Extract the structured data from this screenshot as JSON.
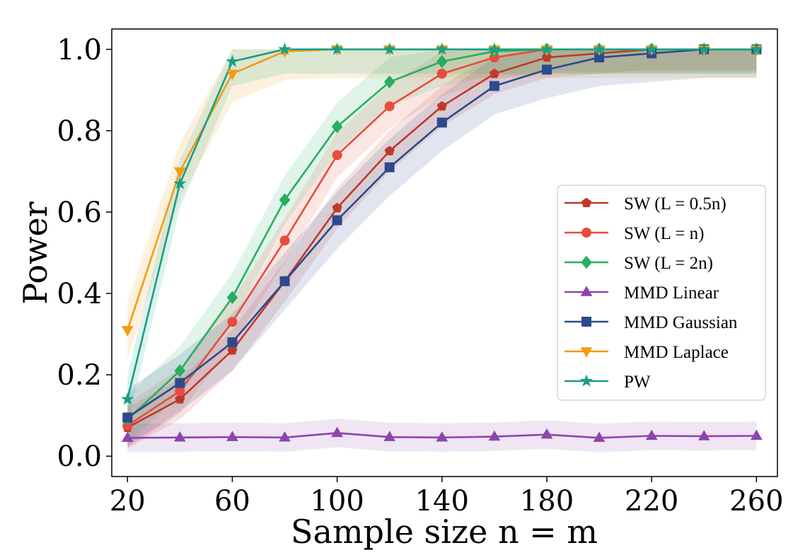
{
  "chart_data": {
    "type": "line",
    "xlabel": "Sample size n = m",
    "ylabel": "Power",
    "xlim": [
      14,
      268
    ],
    "ylim": [
      -0.05,
      1.05
    ],
    "x_ticks": [
      20,
      60,
      100,
      140,
      180,
      220,
      260
    ],
    "y_ticks": [
      0.0,
      0.2,
      0.4,
      0.6,
      0.8,
      1.0
    ],
    "x_tick_labels": [
      "20",
      "60",
      "100",
      "140",
      "180",
      "220",
      "260"
    ],
    "y_tick_labels": [
      "0.0",
      "0.2",
      "0.4",
      "0.6",
      "0.8",
      "1.0"
    ],
    "legend_position": "center-right",
    "x": [
      20,
      40,
      60,
      80,
      100,
      120,
      140,
      160,
      180,
      200,
      220,
      240,
      260
    ],
    "series": [
      {
        "name": "SW (L = 0.5n)",
        "color": "#c0392b",
        "marker": "pentagon",
        "values": [
          0.07,
          0.14,
          0.26,
          0.43,
          0.61,
          0.75,
          0.86,
          0.94,
          0.98,
          0.99,
          1.0,
          1.0,
          1.0
        ],
        "band": 0.05
      },
      {
        "name": "SW (L = n)",
        "color": "#e74c3c",
        "marker": "circle",
        "values": [
          0.075,
          0.16,
          0.33,
          0.53,
          0.74,
          0.86,
          0.94,
          0.98,
          1.0,
          1.0,
          1.0,
          1.0,
          1.0
        ],
        "band": 0.055
      },
      {
        "name": "SW (L = 2n)",
        "color": "#27ae60",
        "marker": "diamond",
        "values": [
          0.09,
          0.21,
          0.39,
          0.63,
          0.81,
          0.92,
          0.97,
          0.995,
          1.0,
          1.0,
          1.0,
          1.0,
          1.0
        ],
        "band": 0.06
      },
      {
        "name": "MMD Linear",
        "color": "#8e44ad",
        "marker": "triangle-up",
        "values": [
          0.045,
          0.046,
          0.047,
          0.046,
          0.057,
          0.047,
          0.046,
          0.048,
          0.053,
          0.045,
          0.05,
          0.049,
          0.05
        ],
        "band": 0.035
      },
      {
        "name": "MMD Gaussian",
        "color": "#2c4a8c",
        "marker": "square",
        "values": [
          0.095,
          0.18,
          0.28,
          0.43,
          0.58,
          0.71,
          0.82,
          0.91,
          0.95,
          0.98,
          0.99,
          1.0,
          1.0
        ],
        "band": 0.07
      },
      {
        "name": "MMD Laplace",
        "color": "#f39c12",
        "marker": "triangle-down",
        "values": [
          0.31,
          0.7,
          0.94,
          0.995,
          1.0,
          1.0,
          1.0,
          1.0,
          1.0,
          1.0,
          1.0,
          1.0,
          1.0
        ],
        "band": 0.07
      },
      {
        "name": "PW",
        "color": "#16a085",
        "marker": "star",
        "values": [
          0.14,
          0.67,
          0.97,
          1.0,
          1.0,
          1.0,
          1.0,
          1.0,
          1.0,
          1.0,
          1.0,
          1.0,
          1.0
        ],
        "band": 0.06
      }
    ]
  }
}
